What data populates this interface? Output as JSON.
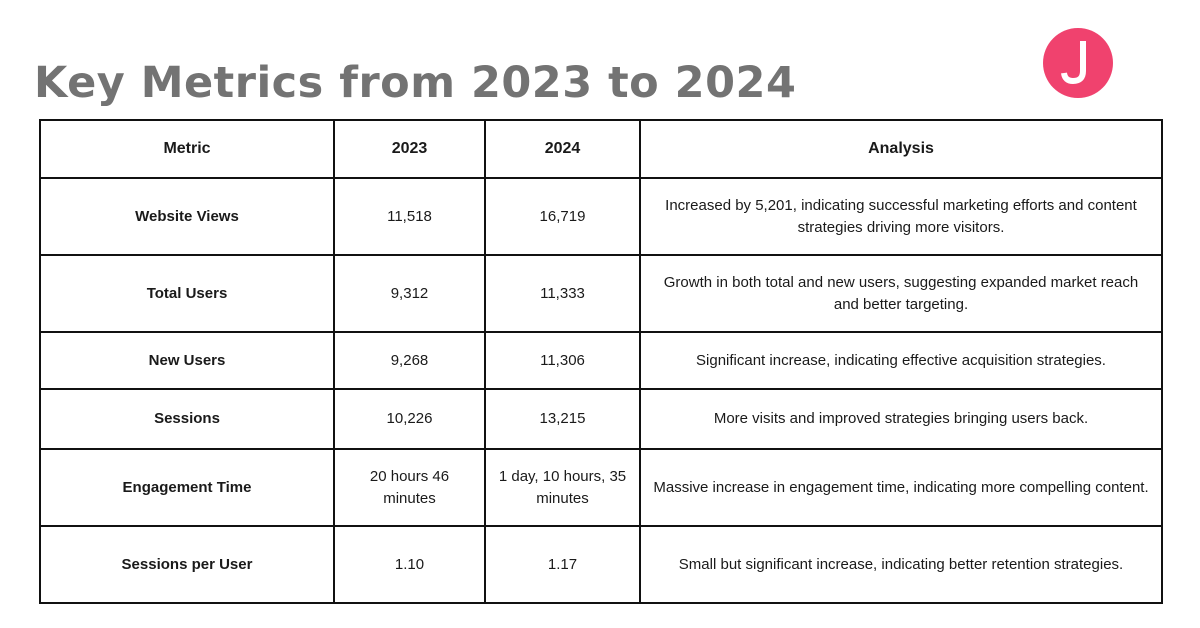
{
  "title": "Key Metrics from 2023 to 2024",
  "logo": {
    "icon": "j-logo-icon",
    "color": "#f0426e"
  },
  "table": {
    "headers": {
      "metric": "Metric",
      "y2023": "2023",
      "y2024": "2024",
      "analysis": "Analysis"
    },
    "rows": [
      {
        "metric": "Website Views",
        "y2023": "11,518",
        "y2024": "16,719",
        "analysis": "Increased by 5,201, indicating successful marketing efforts and content strategies driving more visitors."
      },
      {
        "metric": "Total Users",
        "y2023": "9,312",
        "y2024": "11,333",
        "analysis": "Growth in both total and new users, suggesting expanded market reach and better targeting."
      },
      {
        "metric": "New Users",
        "y2023": "9,268",
        "y2024": "11,306",
        "analysis": "Significant increase, indicating effective acquisition strategies."
      },
      {
        "metric": "Sessions",
        "y2023": "10,226",
        "y2024": "13,215",
        "analysis": "More visits and improved strategies bringing users back."
      },
      {
        "metric": "Engagement Time",
        "y2023": "20 hours 46 minutes",
        "y2024": "1 day, 10 hours, 35 minutes",
        "analysis": "Massive increase in engagement time, indicating more compelling content."
      },
      {
        "metric": "Sessions per User",
        "y2023": "1.10",
        "y2024": "1.17",
        "analysis": "Small but significant increase, indicating better retention strategies."
      }
    ]
  }
}
